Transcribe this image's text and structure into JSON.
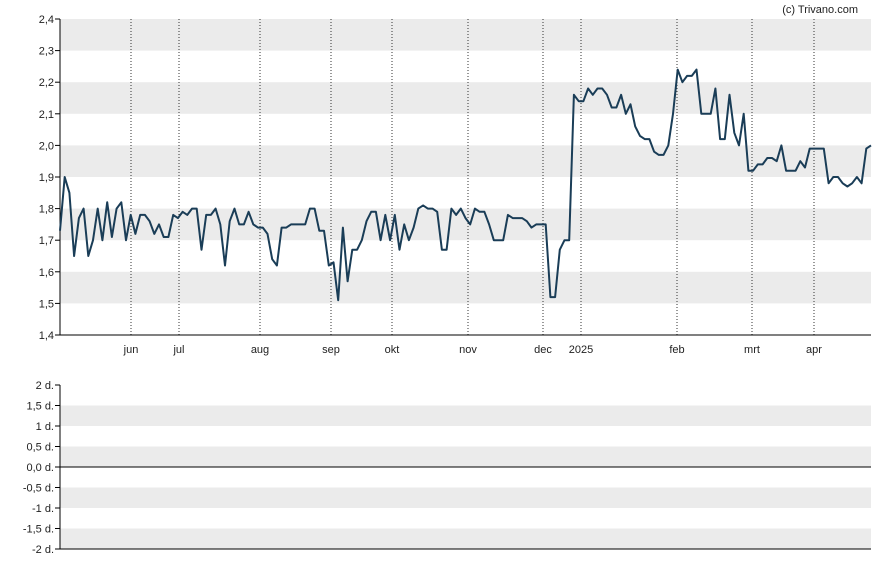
{
  "credit": "(c) Trivano.com",
  "colors": {
    "line": "#1a3d57",
    "band": "#ebebeb",
    "axis": "#000000",
    "vgrid": "#333333"
  },
  "chart_data": [
    {
      "type": "line",
      "x_labels": [
        "jun",
        "jul",
        "aug",
        "sep",
        "okt",
        "nov",
        "dec",
        "2025",
        "feb",
        "mrt",
        "apr"
      ],
      "y_ticks": [
        "1,4",
        "1,5",
        "1,6",
        "1,7",
        "1,8",
        "1,9",
        "2,0",
        "2,1",
        "2,2",
        "2,3",
        "2,4"
      ],
      "ylim": [
        1.4,
        2.4
      ],
      "grid": "alternating horizontal bands, dotted vertical lines at month boundaries",
      "series": [
        {
          "values": [
            1.73,
            1.9,
            1.85,
            1.65,
            1.77,
            1.8,
            1.65,
            1.7,
            1.8,
            1.7,
            1.82,
            1.71,
            1.8,
            1.82,
            1.7,
            1.78,
            1.72,
            1.78,
            1.78,
            1.76,
            1.72,
            1.75,
            1.71,
            1.71,
            1.78,
            1.77,
            1.79,
            1.78,
            1.8,
            1.8,
            1.67,
            1.78,
            1.78,
            1.8,
            1.75,
            1.62,
            1.76,
            1.8,
            1.75,
            1.75,
            1.79,
            1.75,
            1.74,
            1.74,
            1.72,
            1.64,
            1.62,
            1.74,
            1.74,
            1.75,
            1.75,
            1.75,
            1.75,
            1.8,
            1.8,
            1.73,
            1.73,
            1.62,
            1.63,
            1.51,
            1.74,
            1.57,
            1.67,
            1.67,
            1.7,
            1.76,
            1.79,
            1.79,
            1.7,
            1.78,
            1.7,
            1.78,
            1.67,
            1.75,
            1.7,
            1.74,
            1.8,
            1.81,
            1.8,
            1.8,
            1.79,
            1.67,
            1.67,
            1.8,
            1.78,
            1.8,
            1.77,
            1.75,
            1.8,
            1.79,
            1.79,
            1.75,
            1.7,
            1.7,
            1.7,
            1.78,
            1.77,
            1.77,
            1.77,
            1.76,
            1.74,
            1.75,
            1.75,
            1.75,
            1.52,
            1.52,
            1.67,
            1.7,
            1.7,
            2.16,
            2.14,
            2.14,
            2.18,
            2.16,
            2.18,
            2.18,
            2.16,
            2.12,
            2.12,
            2.16,
            2.1,
            2.13,
            2.06,
            2.03,
            2.02,
            2.02,
            1.98,
            1.97,
            1.97,
            2.0,
            2.1,
            2.24,
            2.2,
            2.22,
            2.22,
            2.24,
            2.1,
            2.1,
            2.1,
            2.18,
            2.02,
            2.02,
            2.16,
            2.04,
            2.0,
            2.1,
            1.92,
            1.92,
            1.94,
            1.94,
            1.96,
            1.96,
            1.95,
            2.0,
            1.92,
            1.92,
            1.92,
            1.95,
            1.93,
            1.99,
            1.99,
            1.99,
            1.99,
            1.88,
            1.9,
            1.9,
            1.88,
            1.87,
            1.88,
            1.9,
            1.88,
            1.99,
            2.0
          ]
        }
      ]
    },
    {
      "type": "line",
      "y_ticks": [
        "-2 d.",
        "-1,5 d.",
        "-1 d.",
        "-0,5 d.",
        "0,0 d.",
        "0,5 d.",
        "1 d.",
        "1,5 d.",
        "2 d."
      ],
      "ylim": [
        -2,
        2
      ],
      "series": [
        {
          "values": [
            0,
            0
          ]
        }
      ],
      "grid": "alternating horizontal bands"
    }
  ]
}
